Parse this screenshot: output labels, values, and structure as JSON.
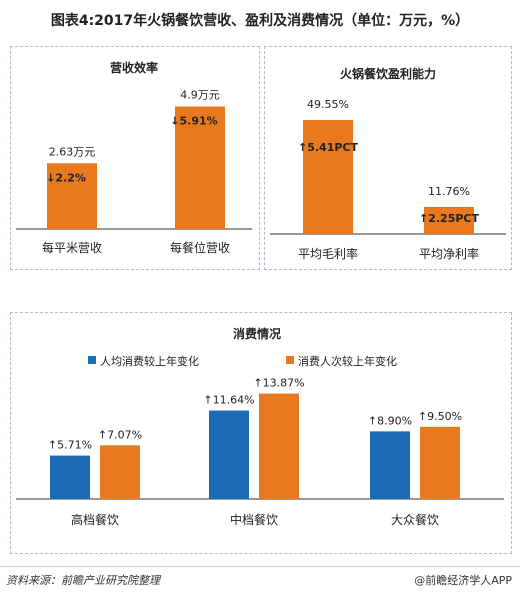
{
  "title": "图表4:2017年火锅餐饮营收、盈利及消费情况（单位：万元，%）",
  "colors": {
    "orange": "#e8791f",
    "blue": "#1d6ab5",
    "border": "#a9bdd6",
    "axis": "#333333"
  },
  "chart_data": [
    {
      "type": "bar",
      "title": "营收效率",
      "categories": [
        "每平米营收",
        "每餐位营收"
      ],
      "values": [
        2.63,
        4.9
      ],
      "value_labels": [
        "2.63万元",
        "4.9万元"
      ],
      "changes": [
        "↓2.2%",
        "↓5.91%"
      ]
    },
    {
      "type": "bar",
      "title": "火锅餐饮盈利能力",
      "categories": [
        "平均毛利率",
        "平均净利率"
      ],
      "values": [
        49.55,
        11.76
      ],
      "value_labels": [
        "49.55%",
        "11.76%"
      ],
      "changes": [
        "↑5.41PCT",
        "↑2.25PCT"
      ]
    },
    {
      "type": "bar",
      "title": "消费情况",
      "categories": [
        "高档餐饮",
        "中档餐饮",
        "大众餐饮"
      ],
      "series": [
        {
          "name": "人均消费较上年变化",
          "values": [
            5.71,
            11.64,
            8.9
          ],
          "labels": [
            "↑5.71%",
            "↑11.64%",
            "↑8.90%"
          ],
          "color": "#1d6ab5"
        },
        {
          "name": "消费人次较上年变化",
          "values": [
            7.07,
            13.87,
            9.5
          ],
          "labels": [
            "↑7.07%",
            "↑13.87%",
            "↑9.50%"
          ],
          "color": "#e8791f"
        }
      ],
      "legend": "top"
    }
  ],
  "footer": {
    "source": "资料来源：前瞻产业研究院整理",
    "brand": "@前瞻经济学人APP"
  }
}
